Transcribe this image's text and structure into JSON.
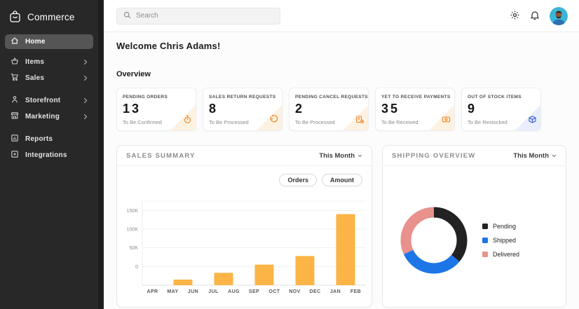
{
  "sidebar": {
    "logo_label": "Commerce",
    "items": [
      {
        "label": "Home",
        "icon": "home-icon",
        "active": true,
        "has_chevron": false
      },
      {
        "label": "Items",
        "icon": "basket-icon",
        "active": false,
        "has_chevron": true
      },
      {
        "label": "Sales",
        "icon": "cart-icon",
        "active": false,
        "has_chevron": true
      },
      {
        "label": "Storefront",
        "icon": "person-icon",
        "active": false,
        "has_chevron": true
      },
      {
        "label": "Marketing",
        "icon": "store-icon",
        "active": false,
        "has_chevron": true
      },
      {
        "label": "Reports",
        "icon": "bar-chart-icon",
        "active": false,
        "has_chevron": false
      },
      {
        "label": "Integrations",
        "icon": "integrations-icon",
        "active": false,
        "has_chevron": false
      }
    ]
  },
  "topbar": {
    "search_placeholder": "Search",
    "icons": [
      "settings-icon",
      "notifications-icon",
      "avatar"
    ]
  },
  "main": {
    "welcome": "Welcome Chris Adams!",
    "section_title": "Overview",
    "stat_cards": [
      {
        "title": "PENDING ORDERS",
        "value": "13",
        "subtitle": "To Be Confirmed",
        "icon": "stopwatch-icon",
        "accent": "orange"
      },
      {
        "title": "SALES RETURN REQUESTS",
        "value": "8",
        "subtitle": "To Be Processed",
        "icon": "undo-icon",
        "accent": "orange"
      },
      {
        "title": "PENDING CANCEL REQUESTS",
        "value": "2",
        "subtitle": "To Be Processed",
        "icon": "cancel-gear-icon",
        "accent": "orange"
      },
      {
        "title": "YET TO RECEIVE PAYMENTS",
        "value": "35",
        "subtitle": "To Be Received",
        "icon": "payment-icon",
        "accent": "orange"
      },
      {
        "title": "OUT OF STOCK ITEMS",
        "value": "9",
        "subtitle": "To Be Restocked",
        "icon": "box-icon",
        "accent": "blue"
      }
    ]
  },
  "chart_data": [
    {
      "type": "bar",
      "title": "SALES SUMMARY",
      "period": "This Month",
      "toggles": [
        "Orders",
        "Amount"
      ],
      "bar_color": "#FBB445",
      "x_tick_labels": [
        "APR",
        "MAY",
        "JUN",
        "JUL",
        "AUG",
        "SEP",
        "OCT",
        "NOV",
        "DEC",
        "JAN",
        "FEB"
      ],
      "y_ticks": [
        {
          "label": "150K",
          "value": 150000
        },
        {
          "label": "100K",
          "value": 100000
        },
        {
          "label": "50K",
          "value": 50000
        },
        {
          "label": "0",
          "value": 0
        }
      ],
      "ylim": [
        -50000,
        175000
      ],
      "grid": true,
      "bars": [
        {
          "between": [
            "MAY",
            "JUN"
          ],
          "top_value": -35000
        },
        {
          "between": [
            "JUL",
            "AUG"
          ],
          "top_value": -17000
        },
        {
          "between": [
            "SEP",
            "OCT"
          ],
          "top_value": 5000
        },
        {
          "between": [
            "NOV",
            "DEC"
          ],
          "top_value": 28000
        },
        {
          "between": [
            "JAN",
            "FEB"
          ],
          "top_value": 140000
        }
      ]
    },
    {
      "type": "donut",
      "title": "SHIPPING OVERVIEW",
      "period": "This Month",
      "legend_position": "right",
      "segments": [
        {
          "label": "Pending",
          "percent": 36,
          "color": "#222222"
        },
        {
          "label": "Shipped",
          "percent": 32,
          "color": "#1C76E8"
        },
        {
          "label": "Delivered",
          "percent": 32,
          "color": "#E8918D"
        }
      ]
    }
  ],
  "colors": {
    "sidebar_bg": "#282828",
    "accent_orange": "#F08A2E",
    "accent_blue": "#3F63D2",
    "bar_orange": "#FBB445",
    "donut_blue": "#1C76E8",
    "donut_pink": "#E8918D"
  }
}
